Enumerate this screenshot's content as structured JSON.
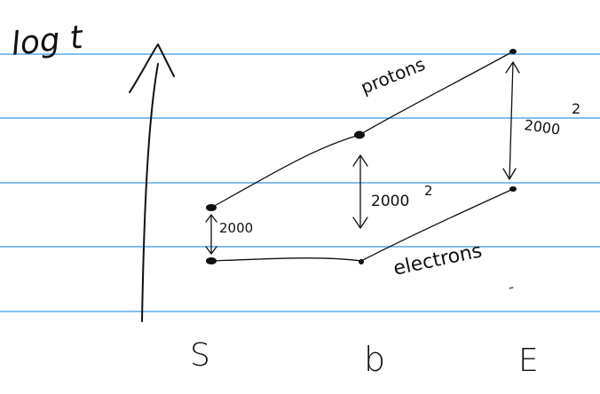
{
  "axis_label": "log t",
  "series_labels": {
    "upper": "protons",
    "lower": "electrons"
  },
  "gap_labels": {
    "s": "2000",
    "b": "2000",
    "b_exponent": "2",
    "e": "2000",
    "e_exponent": "2"
  },
  "x_labels": {
    "s": "S",
    "b": "b",
    "e": "E"
  },
  "colors": {
    "ruled_line": "#5aa9e6",
    "ink": "#111111"
  }
}
